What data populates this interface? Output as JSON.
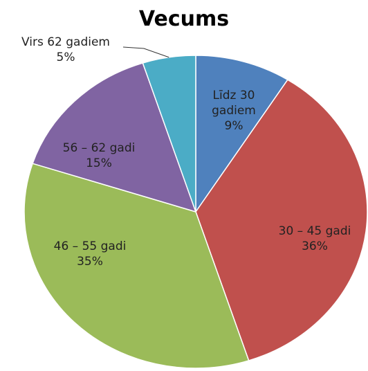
{
  "chart_data": {
    "type": "pie",
    "title": "Vecums",
    "categories": [
      "Līdz 30 gadiem",
      "30 – 45 gadi",
      "46 – 55 gadi",
      "56 – 62 gadi",
      "Virs 62 gadiem"
    ],
    "values": [
      9,
      36,
      35,
      15,
      5
    ],
    "value_labels": [
      "9%",
      "36%",
      "35%",
      "15%",
      "5%"
    ],
    "colors": [
      "#4f81bd",
      "#c0504d",
      "#9bbb59",
      "#8064a2",
      "#4bacc6"
    ]
  }
}
